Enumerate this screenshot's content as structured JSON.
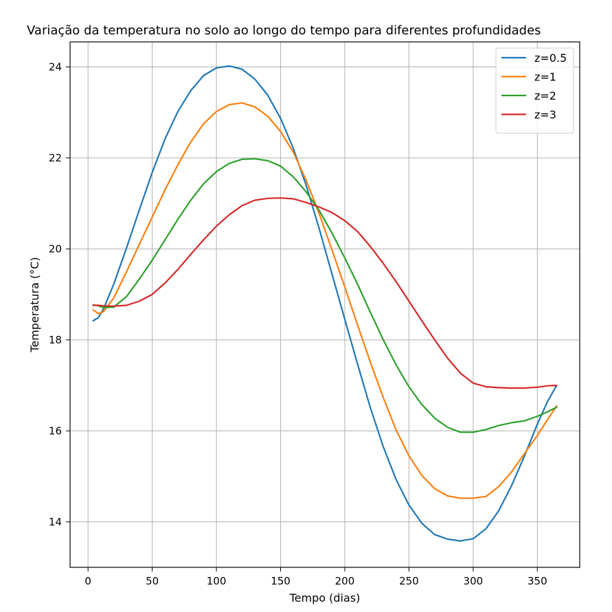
{
  "chart_data": {
    "type": "line",
    "title": "Variação da temperatura no solo ao longo do tempo para diferentes profundidades",
    "xlabel": "Tempo (dias)",
    "ylabel": "Temperatura (°C)",
    "xlim": [
      -14,
      383
    ],
    "ylim": [
      13.0,
      24.55
    ],
    "xticks": [
      0,
      50,
      100,
      150,
      200,
      250,
      300,
      350
    ],
    "yticks": [
      14,
      16,
      18,
      20,
      22,
      24
    ],
    "grid": true,
    "legend_position": "top-right",
    "series": [
      {
        "name": "z=0.5",
        "color": "#1f77b4",
        "points": [
          [
            4,
            18.42
          ],
          [
            8,
            18.49
          ],
          [
            12,
            18.68
          ],
          [
            20,
            19.22
          ],
          [
            30,
            20.02
          ],
          [
            40,
            20.86
          ],
          [
            50,
            21.68
          ],
          [
            60,
            22.42
          ],
          [
            70,
            23.02
          ],
          [
            80,
            23.48
          ],
          [
            90,
            23.81
          ],
          [
            100,
            23.98
          ],
          [
            110,
            24.02
          ],
          [
            120,
            23.95
          ],
          [
            130,
            23.73
          ],
          [
            140,
            23.38
          ],
          [
            150,
            22.87
          ],
          [
            160,
            22.2
          ],
          [
            170,
            21.39
          ],
          [
            180,
            20.45
          ],
          [
            190,
            19.45
          ],
          [
            200,
            18.45
          ],
          [
            210,
            17.46
          ],
          [
            220,
            16.5
          ],
          [
            230,
            15.65
          ],
          [
            240,
            14.93
          ],
          [
            250,
            14.37
          ],
          [
            260,
            13.97
          ],
          [
            270,
            13.72
          ],
          [
            280,
            13.62
          ],
          [
            290,
            13.58
          ],
          [
            300,
            13.63
          ],
          [
            310,
            13.85
          ],
          [
            320,
            14.25
          ],
          [
            330,
            14.8
          ],
          [
            340,
            15.45
          ],
          [
            350,
            16.15
          ],
          [
            358,
            16.65
          ],
          [
            365,
            17.0
          ]
        ]
      },
      {
        "name": "z=1",
        "color": "#ff7f0e",
        "points": [
          [
            4,
            18.66
          ],
          [
            8,
            18.58
          ],
          [
            12,
            18.62
          ],
          [
            20,
            18.92
          ],
          [
            30,
            19.5
          ],
          [
            40,
            20.1
          ],
          [
            50,
            20.7
          ],
          [
            60,
            21.3
          ],
          [
            70,
            21.85
          ],
          [
            80,
            22.35
          ],
          [
            90,
            22.75
          ],
          [
            100,
            23.02
          ],
          [
            110,
            23.17
          ],
          [
            120,
            23.21
          ],
          [
            130,
            23.12
          ],
          [
            140,
            22.92
          ],
          [
            150,
            22.58
          ],
          [
            160,
            22.12
          ],
          [
            170,
            21.5
          ],
          [
            180,
            20.78
          ],
          [
            190,
            19.98
          ],
          [
            200,
            19.16
          ],
          [
            210,
            18.32
          ],
          [
            220,
            17.5
          ],
          [
            230,
            16.73
          ],
          [
            240,
            16.02
          ],
          [
            250,
            15.45
          ],
          [
            260,
            15.02
          ],
          [
            270,
            14.73
          ],
          [
            280,
            14.57
          ],
          [
            290,
            14.52
          ],
          [
            300,
            14.52
          ],
          [
            310,
            14.56
          ],
          [
            320,
            14.78
          ],
          [
            330,
            15.1
          ],
          [
            340,
            15.5
          ],
          [
            350,
            15.9
          ],
          [
            358,
            16.25
          ],
          [
            365,
            16.55
          ]
        ]
      },
      {
        "name": "z=2",
        "color": "#2ca02c",
        "points": [
          [
            4,
            18.77
          ],
          [
            8,
            18.75
          ],
          [
            12,
            18.71
          ],
          [
            20,
            18.72
          ],
          [
            30,
            18.95
          ],
          [
            40,
            19.34
          ],
          [
            50,
            19.75
          ],
          [
            60,
            20.2
          ],
          [
            70,
            20.65
          ],
          [
            80,
            21.07
          ],
          [
            90,
            21.43
          ],
          [
            100,
            21.7
          ],
          [
            110,
            21.88
          ],
          [
            120,
            21.97
          ],
          [
            130,
            21.98
          ],
          [
            140,
            21.94
          ],
          [
            150,
            21.82
          ],
          [
            160,
            21.58
          ],
          [
            170,
            21.25
          ],
          [
            180,
            20.85
          ],
          [
            190,
            20.35
          ],
          [
            200,
            19.8
          ],
          [
            210,
            19.22
          ],
          [
            220,
            18.6
          ],
          [
            230,
            18.0
          ],
          [
            240,
            17.45
          ],
          [
            250,
            16.97
          ],
          [
            260,
            16.58
          ],
          [
            270,
            16.28
          ],
          [
            280,
            16.08
          ],
          [
            290,
            15.97
          ],
          [
            300,
            15.97
          ],
          [
            310,
            16.03
          ],
          [
            320,
            16.12
          ],
          [
            330,
            16.18
          ],
          [
            340,
            16.22
          ],
          [
            350,
            16.32
          ],
          [
            358,
            16.42
          ],
          [
            365,
            16.52
          ]
        ]
      },
      {
        "name": "z=3",
        "color": "#d62728",
        "points": [
          [
            4,
            18.76
          ],
          [
            8,
            18.76
          ],
          [
            12,
            18.75
          ],
          [
            20,
            18.74
          ],
          [
            30,
            18.76
          ],
          [
            40,
            18.85
          ],
          [
            50,
            19.0
          ],
          [
            60,
            19.25
          ],
          [
            70,
            19.55
          ],
          [
            80,
            19.88
          ],
          [
            90,
            20.2
          ],
          [
            100,
            20.5
          ],
          [
            110,
            20.75
          ],
          [
            120,
            20.95
          ],
          [
            130,
            21.07
          ],
          [
            140,
            21.11
          ],
          [
            150,
            21.12
          ],
          [
            160,
            21.1
          ],
          [
            170,
            21.02
          ],
          [
            180,
            20.92
          ],
          [
            190,
            20.8
          ],
          [
            200,
            20.62
          ],
          [
            210,
            20.38
          ],
          [
            220,
            20.05
          ],
          [
            230,
            19.68
          ],
          [
            240,
            19.28
          ],
          [
            250,
            18.85
          ],
          [
            260,
            18.42
          ],
          [
            270,
            18.0
          ],
          [
            280,
            17.6
          ],
          [
            290,
            17.27
          ],
          [
            300,
            17.05
          ],
          [
            310,
            16.97
          ],
          [
            320,
            16.95
          ],
          [
            330,
            16.94
          ],
          [
            340,
            16.94
          ],
          [
            350,
            16.96
          ],
          [
            358,
            16.99
          ],
          [
            365,
            17.0
          ]
        ]
      }
    ]
  }
}
